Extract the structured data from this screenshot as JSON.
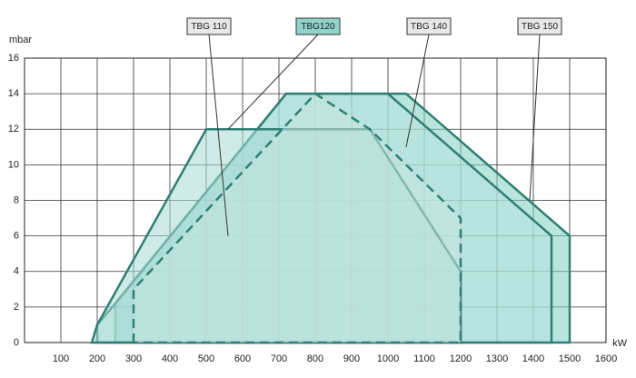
{
  "chart_data": {
    "type": "area",
    "y_label": "mbar",
    "x_label": "kW",
    "xlim": [
      0,
      1600
    ],
    "ylim": [
      0,
      16
    ],
    "xticks": [
      100,
      200,
      300,
      400,
      500,
      600,
      700,
      800,
      900,
      1000,
      1100,
      1200,
      1300,
      1400,
      1500,
      1600
    ],
    "yticks": [
      0,
      2,
      4,
      6,
      8,
      10,
      12,
      14,
      16
    ],
    "grid": true,
    "series": [
      {
        "name": "TBG 150",
        "color": "#7fcfc4",
        "x": [
          250,
          250,
          720,
          1050,
          1500,
          1500
        ],
        "values": [
          0,
          2.2,
          14,
          14,
          6,
          0
        ]
      },
      {
        "name": "TBG 140",
        "color": "#b9e2dc",
        "x": [
          200,
          200,
          250,
          720,
          1000,
          1450,
          1450
        ],
        "values": [
          0,
          1,
          2.2,
          14,
          14,
          6,
          0
        ]
      },
      {
        "name": "TBG 110",
        "color": "#a6dad3",
        "x": [
          185,
          200,
          500,
          950,
          1200,
          1200
        ],
        "values": [
          0,
          1,
          12,
          12,
          4,
          0
        ]
      },
      {
        "name": "TBG120",
        "color": "#c9e6e2",
        "dashed": true,
        "x": [
          300,
          300,
          800,
          950,
          1200,
          1200
        ],
        "values": [
          0,
          3,
          14,
          12,
          7,
          0
        ]
      }
    ]
  }
}
